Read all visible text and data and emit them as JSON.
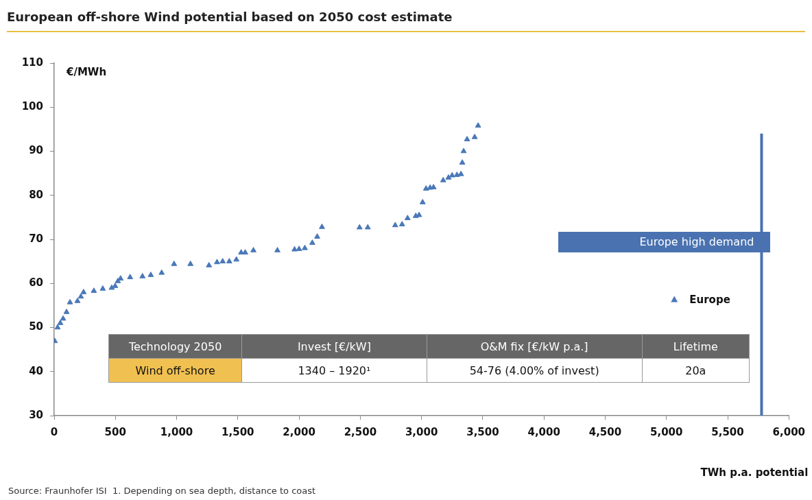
{
  "chart_data": [
    {
      "type": "scatter",
      "title": "European off-shore Wind potential based on 2050 cost estimate",
      "xlabel": "TWh p.a. potential",
      "ylabel": "€/MWh",
      "annotations": [
        "Source: Fraunhofer ISI  1. Depending on sea depth, distance to coast"
      ],
      "xlim": [
        0,
        6000
      ],
      "ylim": [
        30,
        110
      ],
      "xticks": [
        0,
        500,
        {
          "value": 1000,
          "label": "1,000"
        },
        {
          "value": 1500,
          "label": "1,500"
        },
        {
          "value": 2000,
          "label": "2,000"
        },
        {
          "value": 2500,
          "label": "2,500"
        },
        {
          "value": 3000,
          "label": "3,000"
        },
        {
          "value": 3500,
          "label": "3,500"
        },
        {
          "value": 4000,
          "label": "4,000"
        },
        {
          "value": 4500,
          "label": "4,500"
        },
        {
          "value": 5000,
          "label": "5,000"
        },
        {
          "value": 5500,
          "label": "5,500"
        },
        {
          "value": 6000,
          "label": "6,000"
        }
      ],
      "yticks": [
        30,
        40,
        50,
        60,
        70,
        80,
        90,
        100,
        110
      ],
      "grid": false,
      "legend": "right",
      "marker": "triangle",
      "ref_lines": [
        {
          "axis": "x",
          "value": 5777,
          "label": "Europe high demand",
          "color": "#4a72b0"
        }
      ],
      "series": [
        {
          "name": "Europe",
          "color": "#4a78b8",
          "x": [
            5,
            28,
            50,
            73,
            101,
            129,
            190,
            218,
            240,
            324,
            397,
            470,
            498,
            520,
            542,
            620,
            721,
            789,
            878,
            979,
            1113,
            1264,
            1330,
            1376,
            1430,
            1488,
            1527,
            1560,
            1627,
            1823,
            1963,
            2000,
            2047,
            2108,
            2148,
            2187,
            2494,
            2561,
            2785,
            2841,
            2886,
            2953,
            2980,
            3009,
            3037,
            3070,
            3098,
            3177,
            3220,
            3250,
            3289,
            3322,
            3333,
            3344,
            3372,
            3434,
            3462
          ],
          "values": [
            46.9,
            50,
            51,
            52,
            53.5,
            55.7,
            56,
            57,
            58,
            58.3,
            58.8,
            59,
            59.4,
            60.5,
            61.1,
            61.4,
            61.6,
            61.9,
            62.4,
            64.4,
            64.4,
            64.1,
            64.8,
            65,
            65,
            65.4,
            67,
            67,
            67.5,
            67.5,
            67.7,
            67.8,
            68,
            69.2,
            70.6,
            72.8,
            72.7,
            72.7,
            73.2,
            73.4,
            74.8,
            75.3,
            75.5,
            78.4,
            81.5,
            81.7,
            81.8,
            83.4,
            84,
            84.5,
            84.6,
            84.8,
            87.4,
            90,
            92.7,
            93.2,
            95.8
          ]
        }
      ]
    },
    {
      "type": "other",
      "annotations": [
        "Technology 2050",
        "Invest [€/kW]",
        "O&M  fix  [€/kW p.a.]",
        "Lifetime",
        "Wind off-shore",
        "1340 – 1920¹",
        "54-76 (4.00% of invest)",
        "20a"
      ]
    }
  ]
}
